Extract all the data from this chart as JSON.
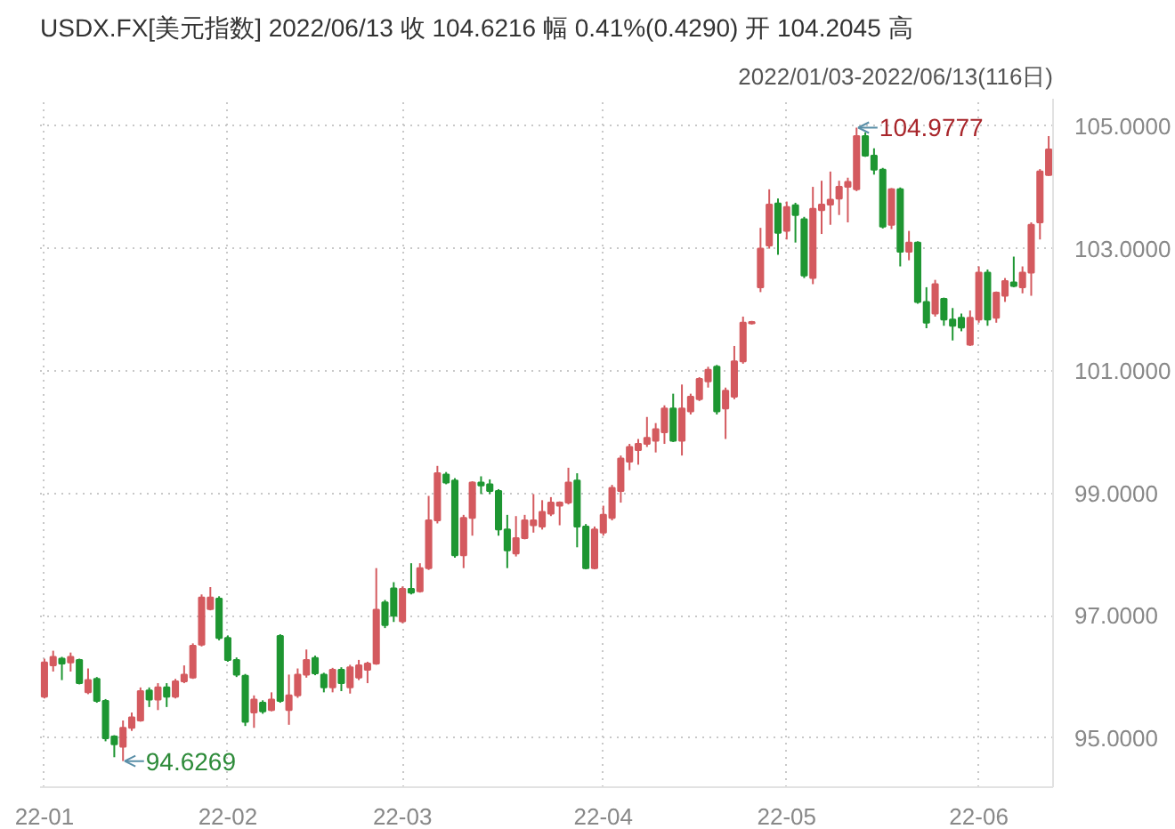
{
  "chart_data": {
    "type": "candlestick",
    "title": "USDX.FX[美元指数]   2022/06/13   收 104.6216   幅 0.41%(0.4290)   开 104.2045   高",
    "subtitle": "2022/01/03-2022/06/13(116日)",
    "categories": [
      "22-01",
      null,
      null,
      null,
      null,
      null,
      null,
      null,
      null,
      null,
      null,
      null,
      null,
      null,
      null,
      null,
      null,
      null,
      null,
      null,
      null,
      "22-02",
      null,
      null,
      null,
      null,
      null,
      null,
      null,
      null,
      null,
      null,
      null,
      null,
      null,
      null,
      null,
      null,
      null,
      null,
      null,
      "22-03",
      null,
      null,
      null,
      null,
      null,
      null,
      null,
      null,
      null,
      null,
      null,
      null,
      null,
      null,
      null,
      null,
      null,
      null,
      null,
      null,
      null,
      null,
      "22-04",
      null,
      null,
      null,
      null,
      null,
      null,
      null,
      null,
      null,
      null,
      null,
      null,
      null,
      null,
      null,
      null,
      null,
      null,
      null,
      null,
      "22-05",
      null,
      null,
      null,
      null,
      null,
      null,
      null,
      null,
      null,
      null,
      null,
      null,
      null,
      null,
      null,
      null,
      null,
      null,
      null,
      null,
      null,
      "22-06",
      null,
      null,
      null,
      null,
      null,
      null,
      null,
      null
    ],
    "ohlc": [
      [
        95.68,
        96.3,
        95.65,
        96.24
      ],
      [
        96.19,
        96.43,
        96.09,
        96.33
      ],
      [
        96.3,
        96.33,
        95.95,
        96.22
      ],
      [
        96.24,
        96.4,
        96.09,
        96.33
      ],
      [
        96.28,
        96.3,
        95.88,
        95.9
      ],
      [
        95.75,
        96.14,
        95.72,
        95.95
      ],
      [
        95.97,
        96.0,
        95.58,
        95.61
      ],
      [
        95.61,
        95.64,
        94.95,
        95.0
      ],
      [
        95.03,
        95.05,
        94.69,
        94.9
      ],
      [
        94.86,
        95.29,
        94.6269,
        95.17
      ],
      [
        95.17,
        95.42,
        95.12,
        95.34
      ],
      [
        95.29,
        95.83,
        95.27,
        95.77
      ],
      [
        95.78,
        95.83,
        95.51,
        95.63
      ],
      [
        95.63,
        95.9,
        95.46,
        95.83
      ],
      [
        95.83,
        95.9,
        95.51,
        95.68
      ],
      [
        95.68,
        95.97,
        95.65,
        95.93
      ],
      [
        95.93,
        96.19,
        95.9,
        96.04
      ],
      [
        95.99,
        96.55,
        95.97,
        96.51
      ],
      [
        96.53,
        97.35,
        96.5,
        97.3
      ],
      [
        97.11,
        97.47,
        97.09,
        97.3
      ],
      [
        97.28,
        97.32,
        96.6,
        96.64
      ],
      [
        96.64,
        96.68,
        96.25,
        96.28
      ],
      [
        96.28,
        96.32,
        96.0,
        96.04
      ],
      [
        96.02,
        96.05,
        95.2,
        95.27
      ],
      [
        95.42,
        95.7,
        95.17,
        95.63
      ],
      [
        95.58,
        95.62,
        95.4,
        95.44
      ],
      [
        95.46,
        95.75,
        95.44,
        95.63
      ],
      [
        96.67,
        96.7,
        95.58,
        95.61
      ],
      [
        95.46,
        96.04,
        95.22,
        95.7
      ],
      [
        95.7,
        96.14,
        95.66,
        96.04
      ],
      [
        96.04,
        96.45,
        95.99,
        96.28
      ],
      [
        96.31,
        96.35,
        96.03,
        96.06
      ],
      [
        96.04,
        96.07,
        95.75,
        95.83
      ],
      [
        95.83,
        96.15,
        95.75,
        96.12
      ],
      [
        96.12,
        96.16,
        95.77,
        95.9
      ],
      [
        95.83,
        96.2,
        95.73,
        96.16
      ],
      [
        95.99,
        96.28,
        95.95,
        96.19
      ],
      [
        96.12,
        96.25,
        95.9,
        96.22
      ],
      [
        96.22,
        97.78,
        96.2,
        97.1
      ],
      [
        97.22,
        97.26,
        96.8,
        96.85
      ],
      [
        97.45,
        97.55,
        96.9,
        97.0
      ],
      [
        96.91,
        97.48,
        96.88,
        97.44
      ],
      [
        97.44,
        97.86,
        97.35,
        97.38
      ],
      [
        97.4,
        97.86,
        97.38,
        97.78
      ],
      [
        97.78,
        98.96,
        97.75,
        98.56
      ],
      [
        98.56,
        99.45,
        98.51,
        99.33
      ],
      [
        99.31,
        99.35,
        99.15,
        99.18
      ],
      [
        99.21,
        99.25,
        97.95,
        97.99
      ],
      [
        97.99,
        98.65,
        97.78,
        98.6
      ],
      [
        98.6,
        99.2,
        98.31,
        99.18
      ],
      [
        99.18,
        99.28,
        98.99,
        99.13
      ],
      [
        99.15,
        99.23,
        98.99,
        99.04
      ],
      [
        99.04,
        99.07,
        98.31,
        98.41
      ],
      [
        98.41,
        98.65,
        97.78,
        98.07
      ],
      [
        98.02,
        98.63,
        97.97,
        98.27
      ],
      [
        98.27,
        98.65,
        98.25,
        98.56
      ],
      [
        98.48,
        98.99,
        98.36,
        98.56
      ],
      [
        98.46,
        98.89,
        98.41,
        98.7
      ],
      [
        98.67,
        98.94,
        98.63,
        98.85
      ],
      [
        98.8,
        98.87,
        98.48,
        98.85
      ],
      [
        98.85,
        99.42,
        98.82,
        99.18
      ],
      [
        99.21,
        99.33,
        98.12,
        98.46
      ],
      [
        98.46,
        98.5,
        97.76,
        97.78
      ],
      [
        97.78,
        98.46,
        97.76,
        98.41
      ],
      [
        98.36,
        98.8,
        98.31,
        98.65
      ],
      [
        98.6,
        99.14,
        98.56,
        99.09
      ],
      [
        99.04,
        99.62,
        98.85,
        99.57
      ],
      [
        99.52,
        99.81,
        99.38,
        99.76
      ],
      [
        99.71,
        99.89,
        99.47,
        99.81
      ],
      [
        99.81,
        100.25,
        99.76,
        99.91
      ],
      [
        99.86,
        100.15,
        99.67,
        100.05
      ],
      [
        100.0,
        100.44,
        99.81,
        100.39
      ],
      [
        100.39,
        100.63,
        99.84,
        99.86
      ],
      [
        99.86,
        100.78,
        99.62,
        100.39
      ],
      [
        100.34,
        100.63,
        100.29,
        100.58
      ],
      [
        100.54,
        100.9,
        100.51,
        100.87
      ],
      [
        100.83,
        101.07,
        100.73,
        101.02
      ],
      [
        101.07,
        101.1,
        100.29,
        100.34
      ],
      [
        100.39,
        100.73,
        99.89,
        100.68
      ],
      [
        100.58,
        101.41,
        100.54,
        101.16
      ],
      [
        101.16,
        101.89,
        101.12,
        101.79
      ],
      [
        101.78,
        101.82,
        101.76,
        101.8
      ],
      [
        102.37,
        103.34,
        102.29,
        103.0
      ],
      [
        103.05,
        103.97,
        103.0,
        103.72
      ],
      [
        103.74,
        103.82,
        102.9,
        103.26
      ],
      [
        103.29,
        103.77,
        103.15,
        103.68
      ],
      [
        103.71,
        103.75,
        103.1,
        103.55
      ],
      [
        103.48,
        103.52,
        102.52,
        102.56
      ],
      [
        102.52,
        104.01,
        102.42,
        103.65
      ],
      [
        103.63,
        104.11,
        103.24,
        103.72
      ],
      [
        103.72,
        104.26,
        103.39,
        103.8
      ],
      [
        103.82,
        104.11,
        103.55,
        104.01
      ],
      [
        104.01,
        104.16,
        103.43,
        104.09
      ],
      [
        103.97,
        104.9777,
        103.94,
        104.84
      ],
      [
        104.84,
        104.9,
        104.5,
        104.52
      ],
      [
        104.52,
        104.64,
        104.21,
        104.29
      ],
      [
        104.29,
        104.32,
        103.33,
        103.36
      ],
      [
        103.39,
        103.99,
        103.32,
        103.97
      ],
      [
        103.97,
        104.0,
        102.71,
        102.95
      ],
      [
        102.95,
        103.29,
        102.81,
        103.1
      ],
      [
        103.1,
        103.12,
        102.1,
        102.13
      ],
      [
        102.13,
        102.37,
        101.7,
        101.79
      ],
      [
        101.94,
        102.49,
        101.89,
        102.42
      ],
      [
        102.18,
        102.2,
        101.74,
        101.84
      ],
      [
        101.84,
        102.03,
        101.5,
        101.74
      ],
      [
        101.87,
        101.94,
        101.65,
        101.71
      ],
      [
        101.43,
        101.99,
        101.41,
        101.87
      ],
      [
        101.84,
        102.71,
        101.79,
        102.61
      ],
      [
        102.61,
        102.66,
        101.74,
        101.84
      ],
      [
        101.87,
        102.3,
        101.79,
        102.28
      ],
      [
        102.23,
        102.52,
        102.13,
        102.47
      ],
      [
        102.45,
        102.87,
        102.37,
        102.39
      ],
      [
        102.37,
        102.71,
        102.27,
        102.61
      ],
      [
        102.61,
        103.43,
        102.23,
        103.39
      ],
      [
        103.43,
        104.3,
        103.15,
        104.26
      ],
      [
        104.2045,
        104.84,
        104.19,
        104.6216
      ]
    ],
    "colors": [
      "#d45a5f",
      "#d45a5f",
      "#1e9632",
      "#d45a5f",
      "#1e9632",
      "#d45a5f",
      "#1e9632",
      "#1e9632",
      "#1e9632",
      "#d45a5f",
      "#d45a5f",
      "#d45a5f",
      "#1e9632",
      "#d45a5f",
      "#1e9632",
      "#d45a5f",
      "#d45a5f",
      "#d45a5f",
      "#d45a5f",
      "#d45a5f",
      "#1e9632",
      "#1e9632",
      "#1e9632",
      "#1e9632",
      "#d45a5f",
      "#1e9632",
      "#d45a5f",
      "#1e9632",
      "#d45a5f",
      "#d45a5f",
      "#d45a5f",
      "#1e9632",
      "#1e9632",
      "#d45a5f",
      "#1e9632",
      "#d45a5f",
      "#d45a5f",
      "#d45a5f",
      "#d45a5f",
      "#1e9632",
      "#1e9632",
      "#d45a5f",
      "#1e9632",
      "#d45a5f",
      "#d45a5f",
      "#d45a5f",
      "#1e9632",
      "#1e9632",
      "#d45a5f",
      "#d45a5f",
      "#1e9632",
      "#1e9632",
      "#1e9632",
      "#1e9632",
      "#d45a5f",
      "#d45a5f",
      "#d45a5f",
      "#d45a5f",
      "#d45a5f",
      "#d45a5f",
      "#d45a5f",
      "#1e9632",
      "#1e9632",
      "#d45a5f",
      "#d45a5f",
      "#d45a5f",
      "#d45a5f",
      "#d45a5f",
      "#d45a5f",
      "#d45a5f",
      "#d45a5f",
      "#d45a5f",
      "#1e9632",
      "#d45a5f",
      "#d45a5f",
      "#d45a5f",
      "#d45a5f",
      "#1e9632",
      "#d45a5f",
      "#d45a5f",
      "#d45a5f",
      "#d45a5f",
      "#d45a5f",
      "#d45a5f",
      "#1e9632",
      "#d45a5f",
      "#1e9632",
      "#1e9632",
      "#d45a5f",
      "#d45a5f",
      "#d45a5f",
      "#d45a5f",
      "#d45a5f",
      "#d45a5f",
      "#1e9632",
      "#1e9632",
      "#1e9632",
      "#d45a5f",
      "#1e9632",
      "#d45a5f",
      "#1e9632",
      "#1e9632",
      "#d45a5f",
      "#1e9632",
      "#1e9632",
      "#1e9632",
      "#d45a5f",
      "#d45a5f",
      "#1e9632",
      "#d45a5f",
      "#d45a5f",
      "#1e9632",
      "#d45a5f",
      "#d45a5f",
      "#d45a5f",
      "#d45a5f"
    ],
    "ylim": [
      94.2,
      105.45
    ],
    "yticks": [
      {
        "value": 95,
        "label": "95.0000"
      },
      {
        "value": 97,
        "label": "97.0000"
      },
      {
        "value": 99,
        "label": "99.0000"
      },
      {
        "value": 101,
        "label": "101.0000"
      },
      {
        "value": 103,
        "label": "103.0000"
      },
      {
        "value": 105,
        "label": "105.0000"
      }
    ],
    "grid": true,
    "annotations": [
      "104.9777",
      "94.6269"
    ]
  }
}
